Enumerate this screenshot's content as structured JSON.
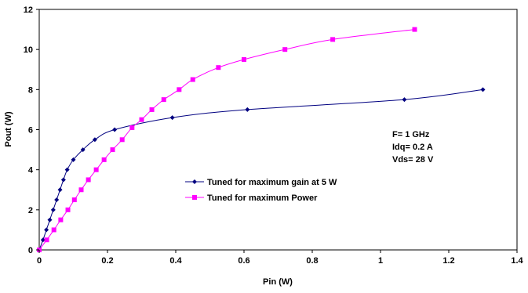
{
  "chart_data": {
    "type": "scatter",
    "xlabel": "Pin (W)",
    "ylabel": "Pout (W)",
    "xlim": [
      0,
      1.4
    ],
    "ylim": [
      0,
      12
    ],
    "xticks": [
      0,
      0.2,
      0.4,
      0.6,
      0.8,
      1,
      1.2,
      1.4
    ],
    "yticks": [
      0,
      2,
      4,
      6,
      8,
      10,
      12
    ],
    "grid": false,
    "legend_position": "center-left",
    "annotation": [
      "F= 1 GHz",
      "Idq= 0.2 A",
      "Vds= 28 V"
    ],
    "series": [
      {
        "name": "Tuned for maximum gain at 5 W",
        "color": "#000080",
        "marker": "diamond",
        "x": [
          0,
          0.011,
          0.021,
          0.031,
          0.041,
          0.051,
          0.061,
          0.071,
          0.082,
          0.1,
          0.128,
          0.163,
          0.221,
          0.39,
          0.61,
          1.07,
          1.3
        ],
        "y": [
          0,
          0.5,
          1.0,
          1.5,
          2.0,
          2.5,
          3.0,
          3.5,
          4.0,
          4.5,
          5.0,
          5.5,
          6.0,
          6.6,
          7.0,
          7.5,
          8.0
        ]
      },
      {
        "name": "Tuned for maximum Power",
        "color": "#ff00ff",
        "marker": "square",
        "x": [
          0,
          0.022,
          0.043,
          0.063,
          0.084,
          0.103,
          0.123,
          0.144,
          0.167,
          0.19,
          0.215,
          0.243,
          0.272,
          0.3,
          0.33,
          0.365,
          0.41,
          0.45,
          0.525,
          0.6,
          0.72,
          0.86,
          1.1
        ],
        "y": [
          0,
          0.5,
          1.0,
          1.5,
          2.0,
          2.5,
          3.0,
          3.5,
          4.0,
          4.5,
          5.0,
          5.5,
          6.1,
          6.5,
          7.0,
          7.5,
          8.0,
          8.5,
          9.1,
          9.5,
          10.0,
          10.5,
          11.0
        ]
      }
    ]
  }
}
